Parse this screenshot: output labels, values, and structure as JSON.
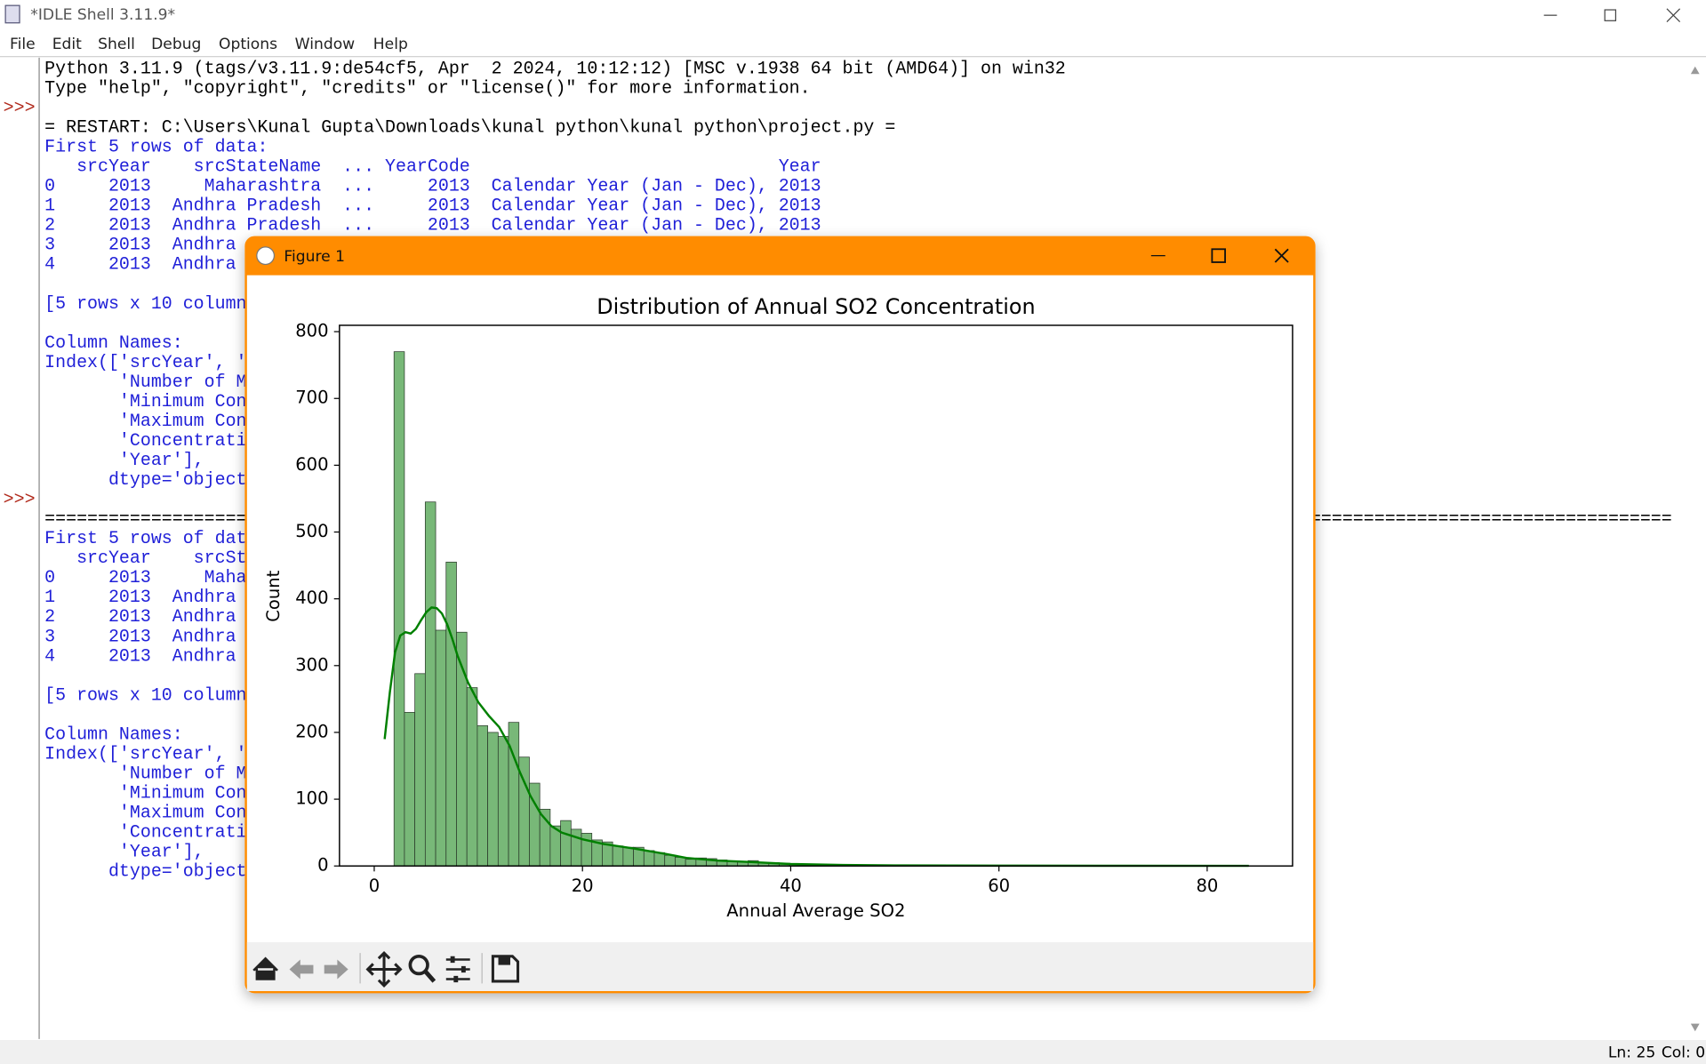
{
  "window": {
    "title": "*IDLE Shell 3.11.9*",
    "menu": [
      "File",
      "Edit",
      "Shell",
      "Debug",
      "Options",
      "Window",
      "Help"
    ]
  },
  "shell": {
    "lines": [
      {
        "text": "Python 3.11.9 (tags/v3.11.9:de54cf5, Apr  2 2024, 10:12:12) [MSC v.1938 64 bit (AMD64)] on win32",
        "kind": "console"
      },
      {
        "text": "Type \"help\", \"copyright\", \"credits\" or \"license()\" for more information.",
        "kind": "console"
      },
      {
        "prompt": ">>>"
      },
      {
        "text": "= RESTART: C:\\Users\\Kunal Gupta\\Downloads\\kunal python\\kunal python\\project.py =",
        "kind": "console"
      },
      {
        "text": "First 5 rows of data:",
        "kind": "stdout"
      },
      {
        "text": "   srcYear    srcStateName  ... YearCode                             Year",
        "kind": "stdout"
      },
      {
        "text": "0     2013     Maharashtra  ...     2013  Calendar Year (Jan - Dec), 2013",
        "kind": "stdout"
      },
      {
        "text": "1     2013  Andhra Pradesh  ...     2013  Calendar Year (Jan - Dec), 2013",
        "kind": "stdout"
      },
      {
        "text": "2     2013  Andhra Pradesh  ...     2013  Calendar Year (Jan - Dec), 2013",
        "kind": "stdout"
      },
      {
        "text": "3     2013  Andhra ",
        "kind": "stdout"
      },
      {
        "text": "4     2013  Andhra ",
        "kind": "stdout"
      },
      null,
      {
        "text": "[5 rows x 10 column",
        "kind": "stdout"
      },
      null,
      {
        "text": "Column Names:",
        "kind": "stdout"
      },
      {
        "text": "Index(['srcYear', '",
        "kind": "stdout"
      },
      {
        "text": "       'Number of M",
        "kind": "stdout"
      },
      {
        "text": "       'Minimum Con",
        "kind": "stdout"
      },
      {
        "text": "       'Maximum Con",
        "kind": "stdout"
      },
      {
        "text": "       'Concentrati",
        "kind": "stdout"
      },
      {
        "text": "       'Year'],",
        "kind": "stdout"
      },
      {
        "text": "      dtype='object",
        "kind": "stdout"
      },
      {
        "prompt": ">>>"
      },
      {
        "text": "=========================================================================================================================================================",
        "kind": "console"
      },
      {
        "text": "First 5 rows of dat",
        "kind": "stdout"
      },
      {
        "text": "   srcYear    srcSt",
        "kind": "stdout"
      },
      {
        "text": "0     2013     Maha",
        "kind": "stdout"
      },
      {
        "text": "1     2013  Andhra ",
        "kind": "stdout"
      },
      {
        "text": "2     2013  Andhra ",
        "kind": "stdout"
      },
      {
        "text": "3     2013  Andhra ",
        "kind": "stdout"
      },
      {
        "text": "4     2013  Andhra ",
        "kind": "stdout"
      },
      null,
      {
        "text": "[5 rows x 10 column",
        "kind": "stdout"
      },
      null,
      {
        "text": "Column Names:",
        "kind": "stdout"
      },
      {
        "text": "Index(['srcYear', '",
        "kind": "stdout"
      },
      {
        "text": "       'Number of M",
        "kind": "stdout"
      },
      {
        "text": "       'Minimum Con",
        "kind": "stdout"
      },
      {
        "text": "       'Maximum Con",
        "kind": "stdout"
      },
      {
        "text": "       'Concentrati",
        "kind": "stdout"
      },
      {
        "text": "       'Year'],",
        "kind": "stdout"
      },
      {
        "text": "      dtype='object",
        "kind": "stdout"
      }
    ]
  },
  "status": {
    "line": "Ln: 25",
    "col": "Col: 0"
  },
  "figure": {
    "title": "Figure 1"
  },
  "chart_data": {
    "type": "histogram",
    "title": "Distribution of Annual SO2 Concentration",
    "xlabel": "Annual Average SO2",
    "ylabel": "Count",
    "color": "#78b878",
    "bins": [
      1.9,
      2.9,
      3.9,
      4.9,
      5.9,
      6.9,
      7.9,
      8.9,
      9.9,
      10.9,
      11.9,
      12.9,
      13.9,
      14.9,
      15.9,
      16.9,
      17.9,
      18.9,
      19.9,
      20.9,
      21.9,
      22.9,
      23.9,
      24.9,
      25.9,
      26.9,
      27.9,
      28.9,
      29.9,
      30.9,
      31.9,
      32.9,
      33.9,
      34.9,
      35.9,
      36.9,
      37.9,
      38.9,
      39.9,
      40.9,
      41.9,
      42.9,
      43.9,
      44.9,
      45.9,
      46.9,
      47.9,
      48.9,
      49.9,
      50.9,
      51.9,
      52.9,
      53.9,
      54.9,
      55.9,
      56.9,
      57.9,
      58.9,
      59.9,
      60.9,
      61.9,
      62.9,
      63.9,
      64.9,
      65.9,
      66.9,
      67.9,
      68.9,
      69.9,
      70.9,
      71.9,
      72.9,
      73.9,
      74.9,
      75.9,
      76.9,
      77.9,
      78.9,
      79.9,
      80.9,
      81.9,
      82.9,
      83.9
    ],
    "values": [
      770,
      230,
      288,
      545,
      353,
      455,
      350,
      267,
      210,
      200,
      194,
      215,
      163,
      124,
      85,
      60,
      68,
      55,
      49,
      39,
      36,
      30,
      28,
      28,
      23,
      20,
      16,
      13,
      10,
      12,
      11,
      9,
      7,
      6,
      8,
      5,
      5,
      4,
      3,
      3,
      2,
      2,
      2,
      1,
      1,
      1,
      1,
      0,
      1,
      0,
      1,
      0,
      0,
      1,
      0,
      0,
      0,
      1,
      0,
      0,
      0,
      0,
      1,
      0,
      0,
      0,
      0,
      0,
      1,
      0,
      0,
      0,
      0,
      0,
      0,
      0,
      0,
      0,
      0,
      0,
      0,
      1
    ],
    "kde": {
      "color": "#008000",
      "x": [
        1.0,
        1.5,
        2.0,
        2.5,
        3.0,
        3.5,
        4.0,
        4.5,
        5.0,
        5.5,
        6.0,
        6.5,
        7.0,
        7.5,
        8.0,
        9,
        10,
        11,
        12,
        13,
        14,
        15,
        16,
        17,
        18,
        20,
        22,
        25,
        28,
        30,
        33,
        36,
        40,
        45,
        50,
        60,
        70,
        84
      ],
      "values": [
        190,
        260,
        320,
        345,
        350,
        348,
        355,
        368,
        380,
        387,
        386,
        378,
        362,
        340,
        315,
        275,
        245,
        225,
        208,
        180,
        140,
        105,
        78,
        60,
        50,
        40,
        33,
        26,
        18,
        12,
        8,
        6,
        3,
        1.5,
        0.8,
        0.5,
        0.3,
        0.2
      ]
    },
    "xlim": [
      -3.34,
      88.2
    ],
    "ylim": [
      0,
      809.5
    ],
    "xticks": [
      0,
      20,
      40,
      60,
      80
    ],
    "yticks": [
      0,
      100,
      200,
      300,
      400,
      500,
      600,
      700,
      800
    ]
  }
}
